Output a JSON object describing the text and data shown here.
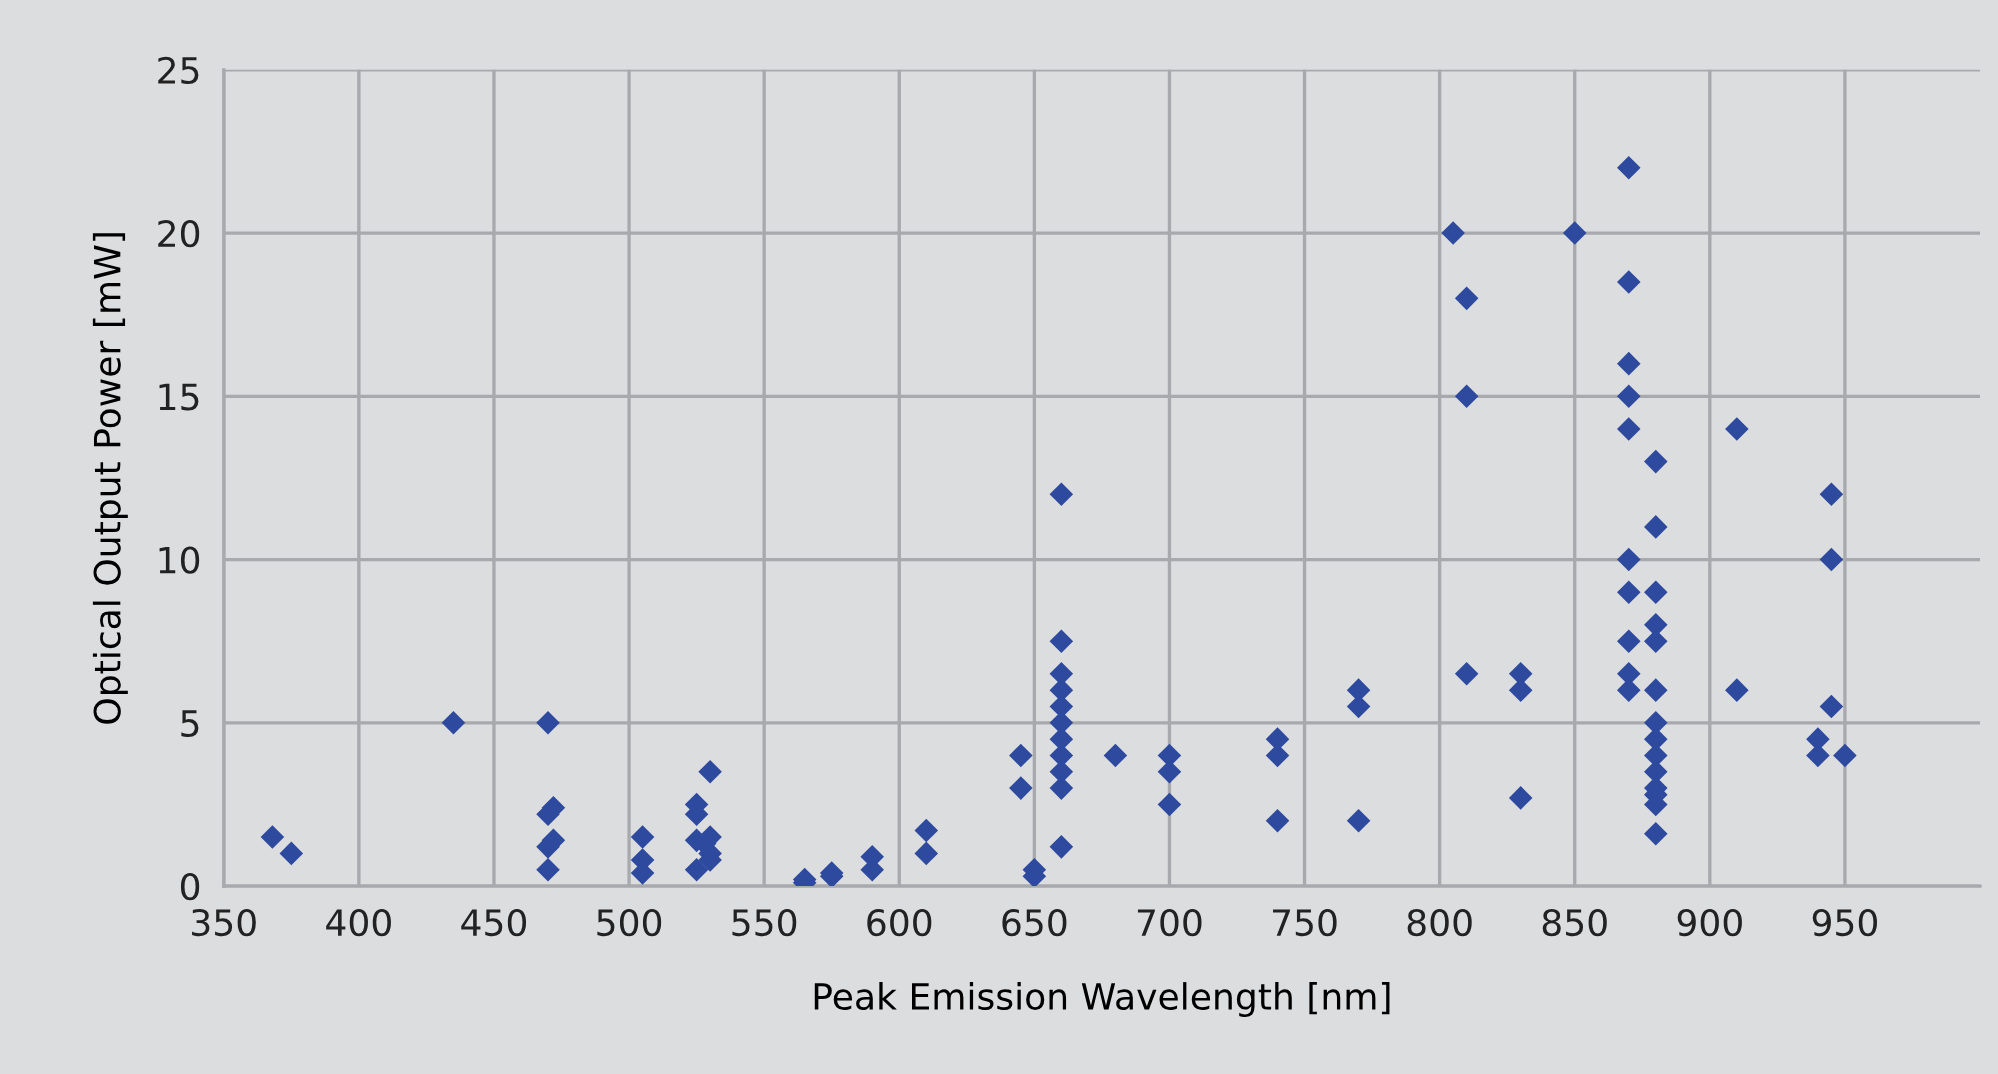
{
  "chart_data": {
    "type": "scatter",
    "xlabel": "Peak Emission Wavelength [nm]",
    "ylabel": "Optical Output Power [mW]",
    "xlim": [
      350,
      1000
    ],
    "xticks": [
      350,
      400,
      450,
      500,
      550,
      600,
      650,
      700,
      750,
      800,
      850,
      900,
      950
    ],
    "ylim": [
      0,
      25
    ],
    "yticks": [
      0,
      5,
      10,
      15,
      20,
      25
    ],
    "grid": true,
    "marker": "diamond",
    "series": [
      {
        "color": "#2e4a9e",
        "x": [
          368,
          375,
          435,
          470,
          470,
          472,
          470,
          472,
          470,
          505,
          505,
          505,
          525,
          525,
          525,
          528,
          530,
          530,
          530,
          525,
          530,
          565,
          565,
          575,
          575,
          590,
          590,
          610,
          610,
          645,
          645,
          650,
          650,
          660,
          660,
          660,
          660,
          660,
          660,
          660,
          660,
          660,
          660,
          660,
          680,
          700,
          700,
          700,
          740,
          740,
          740,
          770,
          770,
          770,
          805,
          810,
          810,
          810,
          830,
          830,
          830,
          850,
          870,
          870,
          870,
          870,
          870,
          870,
          870,
          870,
          870,
          870,
          880,
          880,
          880,
          880,
          880,
          880,
          880,
          880,
          880,
          880,
          880,
          880,
          880,
          880,
          910,
          910,
          940,
          940,
          945,
          945,
          945,
          950
        ],
        "values": [
          1.5,
          1.0,
          5.0,
          5.0,
          2.2,
          2.4,
          1.2,
          1.4,
          0.5,
          1.5,
          0.8,
          0.4,
          2.5,
          2.2,
          1.4,
          1.3,
          3.5,
          1.5,
          1.0,
          0.5,
          0.8,
          0.1,
          0.2,
          0.3,
          0.4,
          0.5,
          0.9,
          1.0,
          1.7,
          4.0,
          3.0,
          0.5,
          0.3,
          12,
          7.5,
          6.5,
          6.0,
          5.5,
          5.0,
          4.5,
          4.0,
          3.5,
          3.0,
          1.2,
          4.0,
          4.0,
          3.5,
          2.5,
          4.5,
          4.0,
          2.0,
          6.0,
          5.5,
          2.0,
          20,
          18,
          15,
          6.5,
          6.5,
          6.0,
          2.7,
          20,
          22,
          18.5,
          16,
          15,
          14,
          10,
          9,
          7.5,
          6.5,
          6.0,
          13,
          11,
          9,
          8,
          7.5,
          6.0,
          5.0,
          4.5,
          4.0,
          3.5,
          3.0,
          2.8,
          2.5,
          1.6,
          14,
          6.0,
          4.5,
          4.0,
          12,
          10,
          5.5,
          4.0
        ]
      }
    ]
  }
}
